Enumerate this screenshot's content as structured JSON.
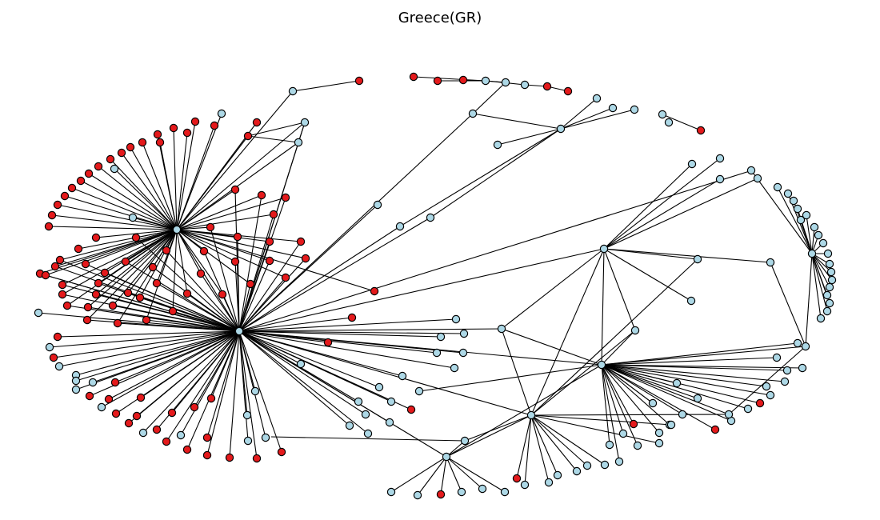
{
  "title": "Greece(GR)",
  "colors": {
    "node_red": "#e41a1c",
    "node_blue": "#add8e6",
    "edge": "#000000",
    "background": "#ffffff"
  },
  "node_color_legend": {
    "r": "node_red",
    "b": "node_blue"
  }
}
